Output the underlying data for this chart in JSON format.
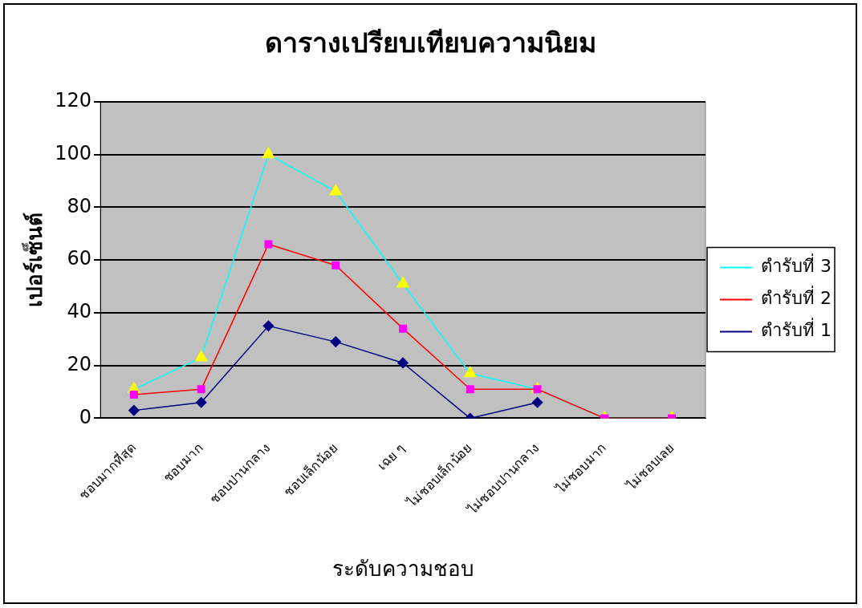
{
  "chart_data": {
    "type": "line",
    "title": "ดารางเปรียบเทียบความนิยม",
    "xlabel": "ระดับความชอบ",
    "ylabel": "เปอร์เซ็นต์",
    "categories": [
      "ชอบมากที่สุด",
      "ชอบมาก",
      "ชอบปานกลาง",
      "ชอบเล็กน้อย",
      "เฉย ๆ",
      "ไม่ชอบเล็กน้อย",
      "ไม่ชอบปานกลาง",
      "ไม่ชอบมาก",
      "ไม่ชอบเลย"
    ],
    "series": [
      {
        "name": "ตำรับที่ 3",
        "color": "#00ffff",
        "marker": "triangle",
        "colors": [
          "#ffff00",
          "#ffff00",
          "#ffff00",
          "#ffff00",
          "#ffff00",
          "#ffff00",
          "#ffff00",
          "#ffff00",
          "#ffff00"
        ],
        "values": [
          11,
          23,
          100,
          86,
          51,
          17,
          11,
          0,
          0
        ]
      },
      {
        "name": "ตำรับที่ 2",
        "color": "#ff0000",
        "marker": "square",
        "colors": [
          "#ff00ff",
          "#ff00ff",
          "#ff00ff",
          "#ff00ff",
          "#ff00ff",
          "#ff00ff",
          "#ff00ff",
          "#ff00ff",
          "#ff00ff"
        ],
        "values": [
          9,
          11,
          66,
          58,
          34,
          11,
          11,
          0,
          0
        ]
      },
      {
        "name": "ตำรับที่ 1",
        "color": "#000080",
        "marker": "diamond",
        "colors": [
          "#000080",
          "#000080",
          "#000080",
          "#000080",
          "#000080",
          "#000080",
          "#000080",
          "#000080",
          "#000080"
        ],
        "values": [
          3,
          6,
          35,
          29,
          21,
          0,
          6,
          null,
          null
        ]
      }
    ],
    "ylim": [
      0,
      120
    ],
    "yticks": [
      0,
      20,
      40,
      60,
      80,
      100,
      120
    ],
    "grid": "y",
    "legend": "right"
  }
}
